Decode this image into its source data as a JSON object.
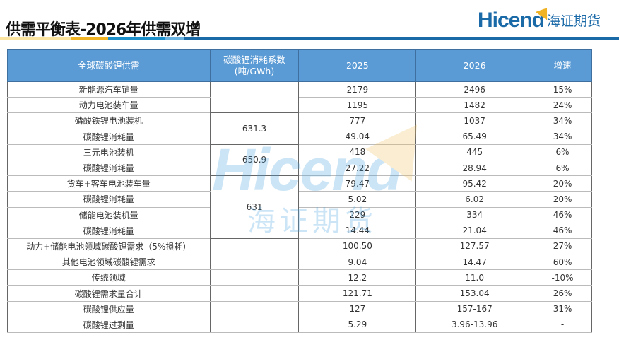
{
  "title": "供需平衡表-2026年供需双增",
  "logo": {
    "en": "Hicend",
    "cn": "海证期货",
    "registered": "®"
  },
  "watermark": {
    "en": "Hicend",
    "cn": "海证期货"
  },
  "colors": {
    "header": "#5b9bd5",
    "brand": "#1b6aa8",
    "accent": "#f0b323"
  },
  "table": {
    "headers": [
      "全球碳酸锂供需",
      "碳酸锂消耗系数\n(吨/GWh)",
      "2025",
      "2026",
      "增速"
    ],
    "coefficients": [
      "",
      "631.3",
      "650.9",
      "631"
    ],
    "rows": [
      {
        "name": "新能源汽车销量",
        "y2025": "2179",
        "y2026": "2496",
        "growth": "15%"
      },
      {
        "name": "动力电池装车量",
        "y2025": "1195",
        "y2026": "1482",
        "growth": "24%"
      },
      {
        "name": "磷酸铁锂电池装机",
        "y2025": "777",
        "y2026": "1037",
        "growth": "34%"
      },
      {
        "name": "碳酸锂消耗量",
        "y2025": "49.04",
        "y2026": "65.49",
        "growth": "34%"
      },
      {
        "name": "三元电池装机",
        "y2025": "418",
        "y2026": "445",
        "growth": "6%"
      },
      {
        "name": "碳酸锂消耗量",
        "y2025": "27.22",
        "y2026": "28.94",
        "growth": "6%"
      },
      {
        "name": "货车+客车电池装车量",
        "y2025": "79.47",
        "y2026": "95.42",
        "growth": "20%"
      },
      {
        "name": "碳酸锂消耗量",
        "y2025": "5.02",
        "y2026": "6.02",
        "growth": "20%"
      },
      {
        "name": "储能电池装机量",
        "y2025": "229",
        "y2026": "334",
        "growth": "46%"
      },
      {
        "name": "碳酸锂消耗量",
        "y2025": "14.44",
        "y2026": "21.04",
        "growth": "46%"
      },
      {
        "name": "动力+储能电池领域碳酸锂需求（5%损耗）",
        "y2025": "100.50",
        "y2026": "127.57",
        "growth": "27%"
      },
      {
        "name": "其他电池领域碳酸锂需求",
        "y2025": "9.04",
        "y2026": "14.47",
        "growth": "60%"
      },
      {
        "name": "传统领域",
        "y2025": "12.2",
        "y2026": "11.0",
        "growth": "-10%"
      },
      {
        "name": "碳酸锂需求量合计",
        "y2025": "121.71",
        "y2026": "153.04",
        "growth": "26%"
      },
      {
        "name": "碳酸锂供应量",
        "y2025": "127",
        "y2026": "157-167",
        "growth": "31%"
      },
      {
        "name": "碳酸锂过剩量",
        "y2025": "5.29",
        "y2026": "3.96-13.96",
        "growth": "-"
      }
    ]
  }
}
